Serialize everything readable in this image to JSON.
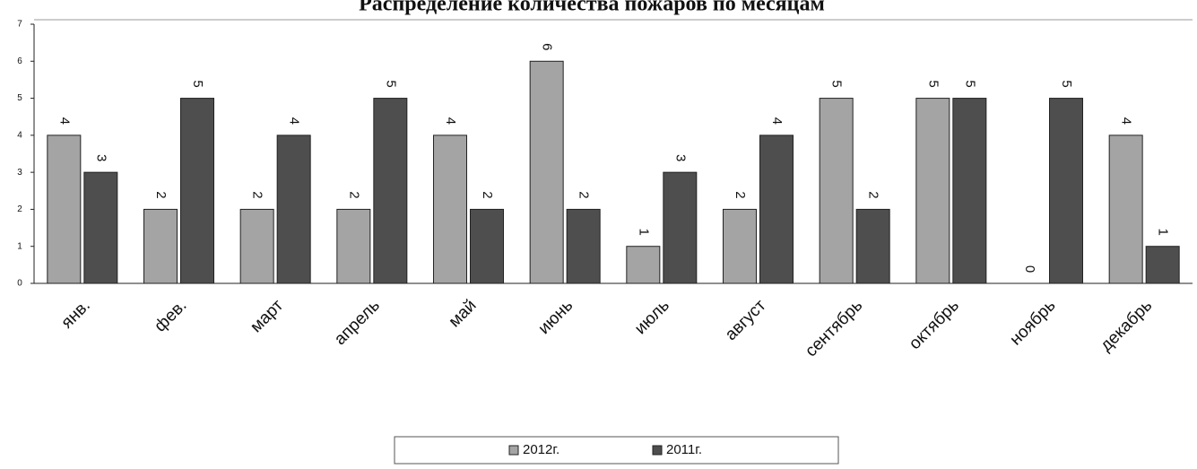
{
  "chart_data": {
    "type": "bar",
    "title": "Распределение количества пожаров по месяцам",
    "categories": [
      "янв.",
      "фев.",
      "март",
      "апрель",
      "май",
      "июнь",
      "июль",
      "август",
      "сентябрь",
      "октябрь",
      "ноябрь",
      "декабрь"
    ],
    "series": [
      {
        "name": "2012г.",
        "color": "#a4a4a4",
        "values": [
          4,
          2,
          2,
          2,
          4,
          6,
          1,
          2,
          5,
          5,
          0,
          4
        ]
      },
      {
        "name": "2011г.",
        "color": "#4e4e4e",
        "values": [
          3,
          5,
          4,
          5,
          2,
          2,
          3,
          4,
          2,
          5,
          5,
          1
        ]
      }
    ],
    "ylim": [
      0,
      7
    ],
    "yticks": [
      0,
      1,
      2,
      3,
      4,
      5,
      6,
      7
    ],
    "legend": "bottom"
  }
}
